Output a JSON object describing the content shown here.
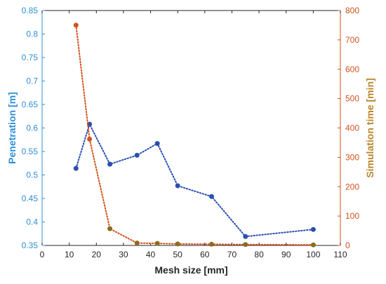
{
  "chart_data": {
    "type": "line",
    "title": "",
    "xlabel": "Mesh size [mm]",
    "ylabel_left": "Penetration [m]",
    "ylabel_right": "Simulation time [min]",
    "xlim": [
      0,
      110
    ],
    "ylim_left": [
      0.35,
      0.85
    ],
    "ylim_right": [
      0,
      800
    ],
    "x_ticks": [
      0,
      10,
      20,
      30,
      40,
      50,
      60,
      70,
      80,
      90,
      100,
      110
    ],
    "y_left_ticks": [
      0.35,
      0.4,
      0.45,
      0.5,
      0.55,
      0.6,
      0.65,
      0.7,
      0.75,
      0.8,
      0.85
    ],
    "y_right_ticks": [
      0,
      100,
      200,
      300,
      400,
      500,
      600,
      700,
      800
    ],
    "grid": false,
    "series": [
      {
        "axis": "left",
        "color": "#2b4fb0",
        "style": "dotted-line-with-markers",
        "x": [
          12.5,
          17.5,
          25,
          35,
          42.5,
          50,
          62.5,
          75,
          100
        ],
        "values": [
          0.514,
          0.608,
          0.523,
          0.542,
          0.567,
          0.477,
          0.454,
          0.369,
          0.384
        ]
      },
      {
        "axis": "right",
        "color": "#d1521d",
        "style": "dotted-line-with-markers",
        "x": [
          12.5,
          17.5,
          25,
          35,
          42.5,
          50,
          62.5,
          75,
          100
        ],
        "values": [
          750,
          362,
          57,
          8,
          7,
          5,
          4,
          3,
          2
        ]
      }
    ],
    "colors": {
      "left_axis": "#2e8fd6",
      "right_axis": "#d1521d",
      "right_axis_label": "#b8862b",
      "x_axis": "#262626",
      "overlap_marker": "#8f6b1f"
    }
  }
}
